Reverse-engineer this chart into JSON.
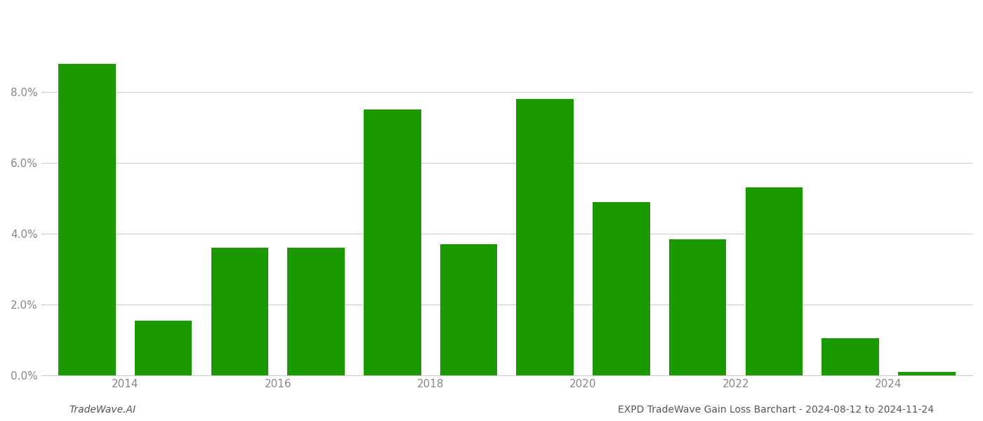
{
  "years": [
    2013,
    2014,
    2015,
    2016,
    2017,
    2018,
    2019,
    2020,
    2021,
    2022,
    2023,
    2024
  ],
  "values": [
    0.088,
    0.0155,
    0.036,
    0.036,
    0.075,
    0.037,
    0.078,
    0.049,
    0.0385,
    0.053,
    0.0105,
    0.001
  ],
  "bar_color": "#1a9a00",
  "background_color": "#ffffff",
  "ylim": [
    0,
    0.103
  ],
  "ytick_values": [
    0.0,
    0.02,
    0.04,
    0.06,
    0.08
  ],
  "xtick_positions": [
    2013.5,
    2015.5,
    2017.5,
    2019.5,
    2021.5,
    2023.5
  ],
  "xtick_labels": [
    "2014",
    "2016",
    "2018",
    "2020",
    "2022",
    "2024"
  ],
  "footer_left": "TradeWave.AI",
  "footer_right": "EXPD TradeWave Gain Loss Barchart - 2024-08-12 to 2024-11-24",
  "bar_width": 0.75,
  "grid_color": "#cccccc",
  "tick_label_color": "#888888",
  "footer_font_size": 10
}
